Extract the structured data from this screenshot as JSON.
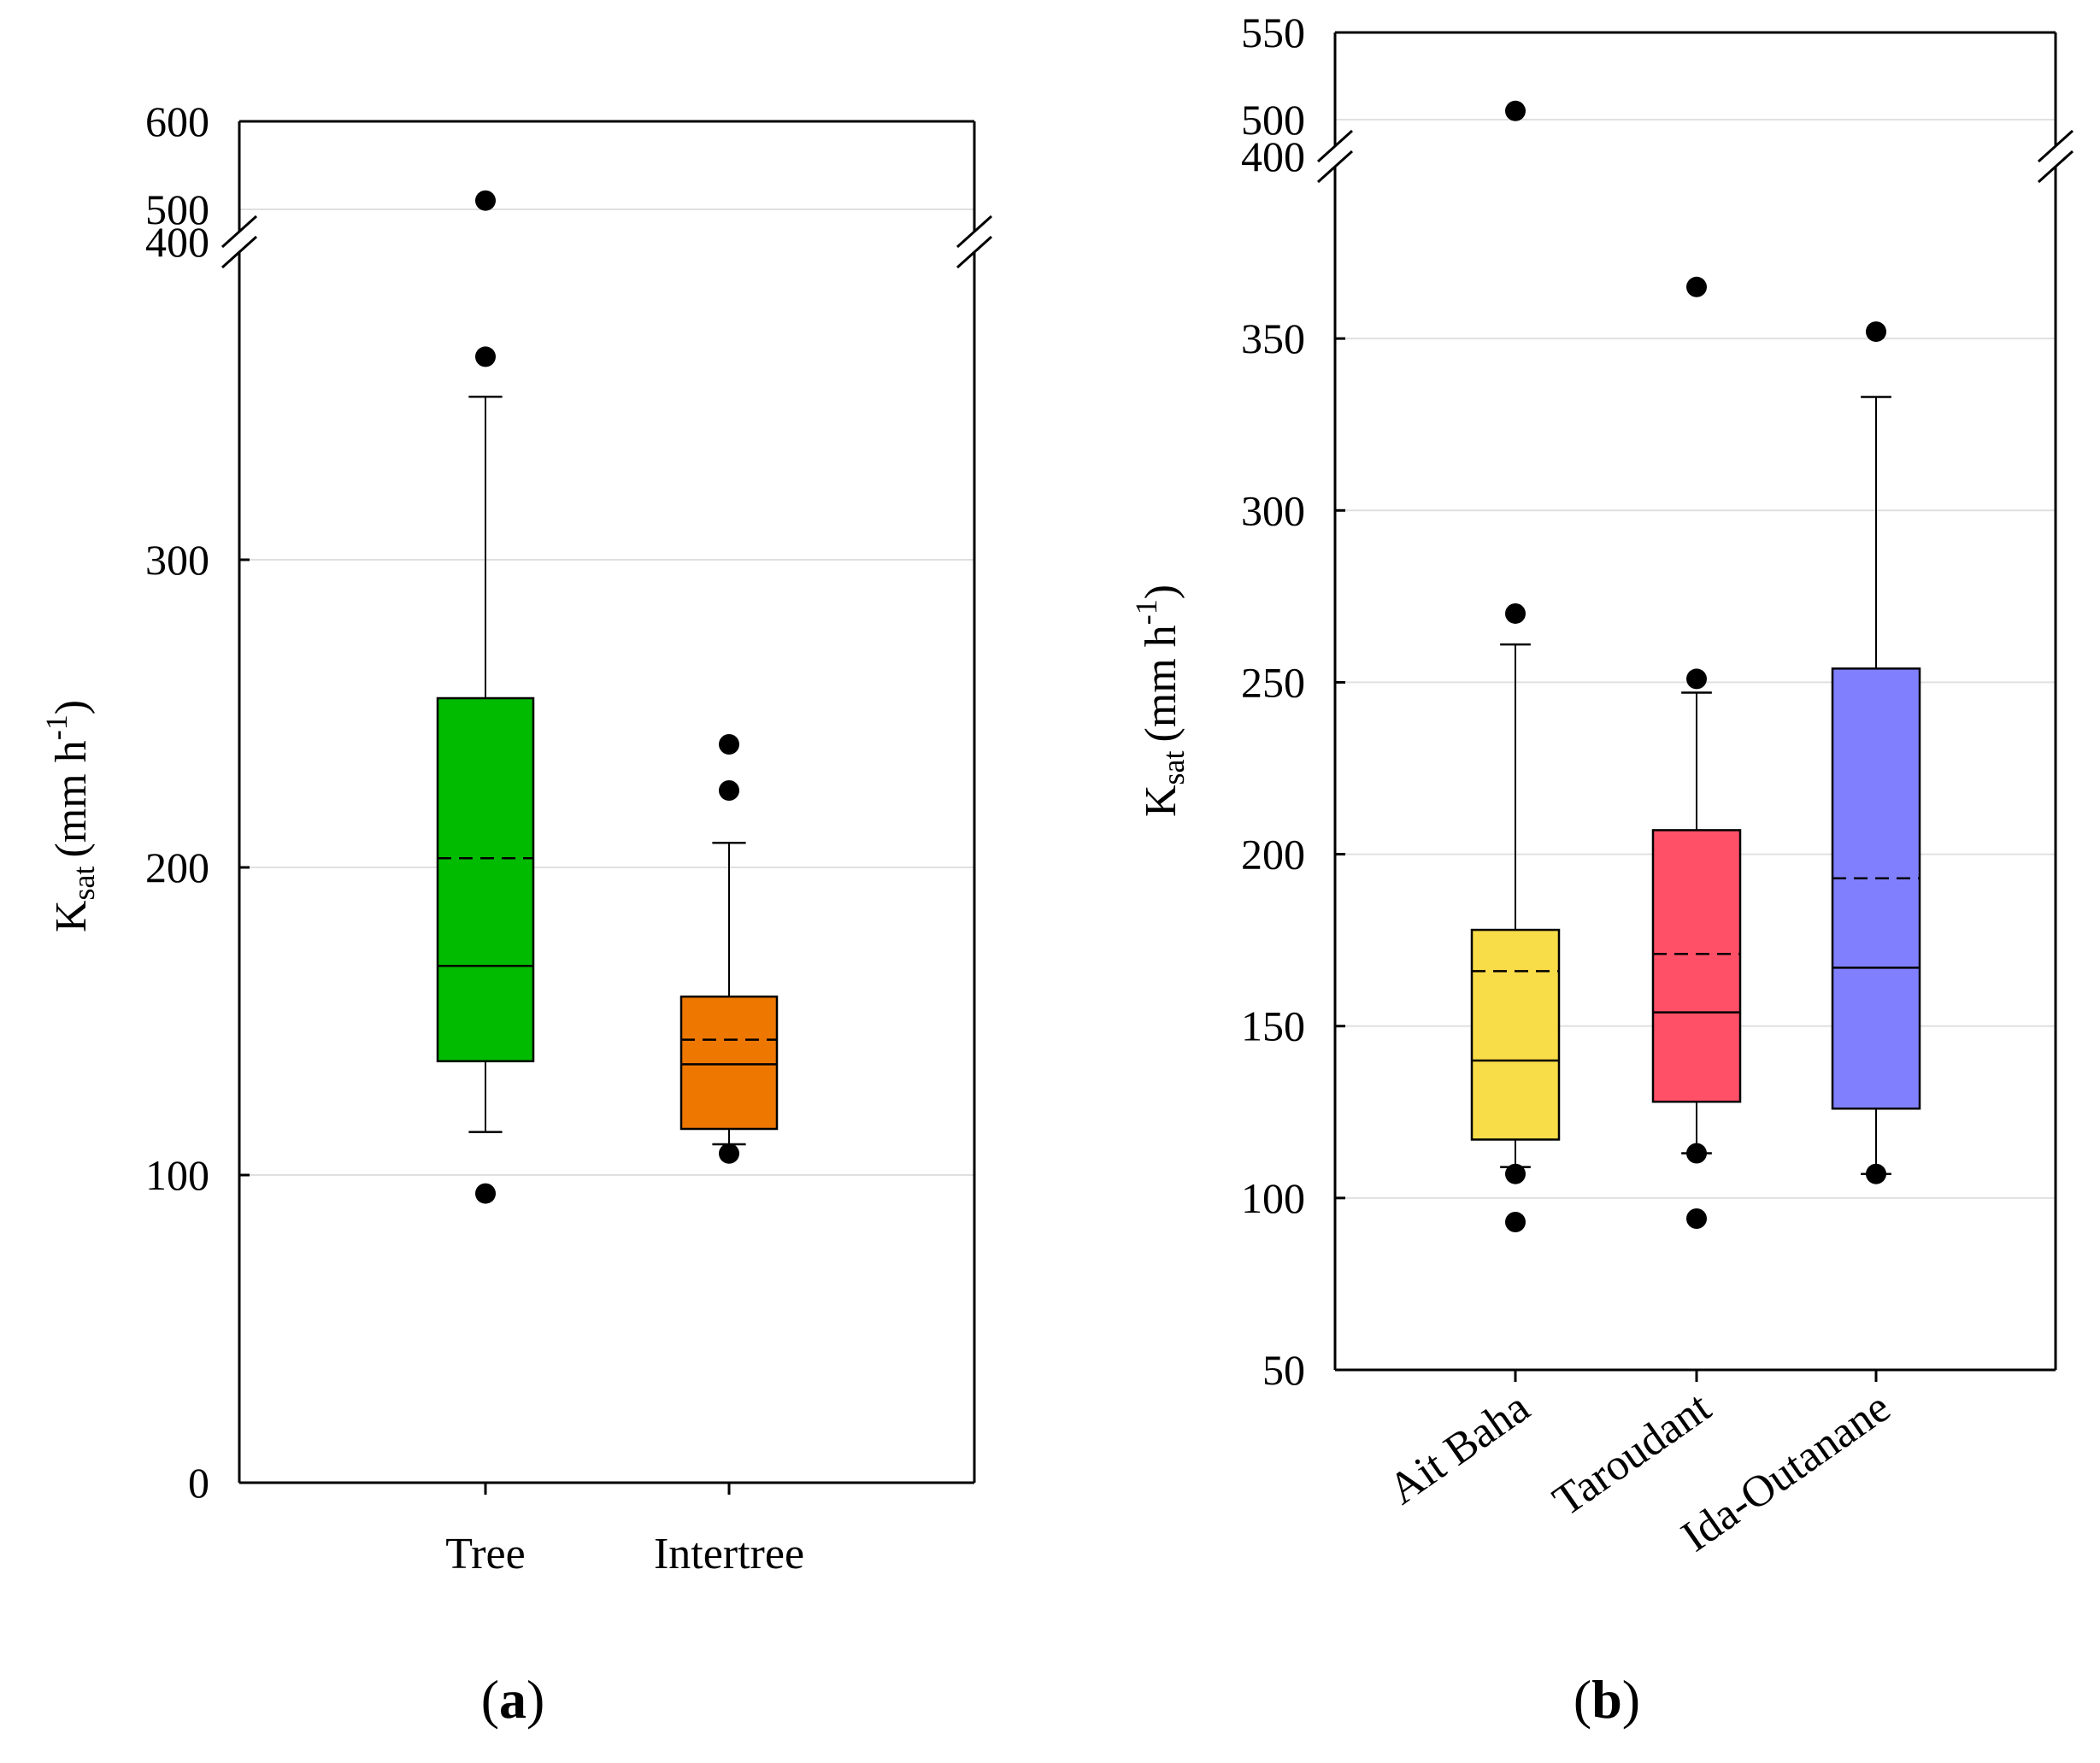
{
  "chart_data": [
    {
      "type": "box",
      "panel_label": "a",
      "ylabel": {
        "symbol": "K",
        "subscript": "sat",
        "units": "(mm h",
        "superscript": "-1",
        "close": ")"
      },
      "categories": [
        "Tree",
        "Intertree"
      ],
      "colors": [
        "#00bb00",
        "#ee7700"
      ],
      "yticks_lower": [
        0,
        100,
        200,
        300
      ],
      "yticks_upper": [
        "400",
        "500",
        "600"
      ],
      "ylim_lower": [
        0,
        400
      ],
      "ylim_upper": [
        400,
        600
      ],
      "axis_break": true,
      "grid": "horizontal",
      "boxes": [
        {
          "name": "Tree",
          "whisker_low": 114,
          "q1": 137,
          "median": 168,
          "mean": 203,
          "q3": 255,
          "whisker_high": 353,
          "outliers": [
            94,
            366,
            510
          ]
        },
        {
          "name": "Intertree",
          "whisker_low": 110,
          "q1": 115,
          "median": 136,
          "mean": 144,
          "q3": 158,
          "whisker_high": 208,
          "outliers": [
            107,
            225,
            240
          ]
        }
      ]
    },
    {
      "type": "box",
      "panel_label": "b",
      "ylabel": {
        "symbol": "K",
        "subscript": "sat",
        "units": "(mm h",
        "superscript": "-1",
        "close": ")"
      },
      "categories": [
        "Ait Baha",
        "Taroudant",
        "Ida-Outanane"
      ],
      "colors": [
        "#f8dc48",
        "#ff5068",
        "#8080ff"
      ],
      "yticks_lower": [
        50,
        100,
        150,
        200,
        250,
        300,
        350
      ],
      "yticks_upper": [
        "400",
        "500",
        "550"
      ],
      "ylim_lower": [
        50,
        400
      ],
      "ylim_upper": [
        400,
        550
      ],
      "axis_break": true,
      "grid": "horizontal",
      "boxes": [
        {
          "name": "Ait Baha",
          "whisker_low": 109,
          "q1": 117,
          "median": 140,
          "mean": 166,
          "q3": 178,
          "whisker_high": 261,
          "outliers": [
            93,
            107,
            270,
            505
          ]
        },
        {
          "name": "Taroudant",
          "whisker_low": 113,
          "q1": 128,
          "median": 154,
          "mean": 171,
          "q3": 207,
          "whisker_high": 247,
          "outliers": [
            94,
            113,
            251,
            365
          ]
        },
        {
          "name": "Ida-Outanane",
          "whisker_low": 107,
          "q1": 126,
          "median": 167,
          "mean": 193,
          "q3": 254,
          "whisker_high": 333,
          "outliers": [
            107,
            352
          ]
        }
      ]
    }
  ]
}
